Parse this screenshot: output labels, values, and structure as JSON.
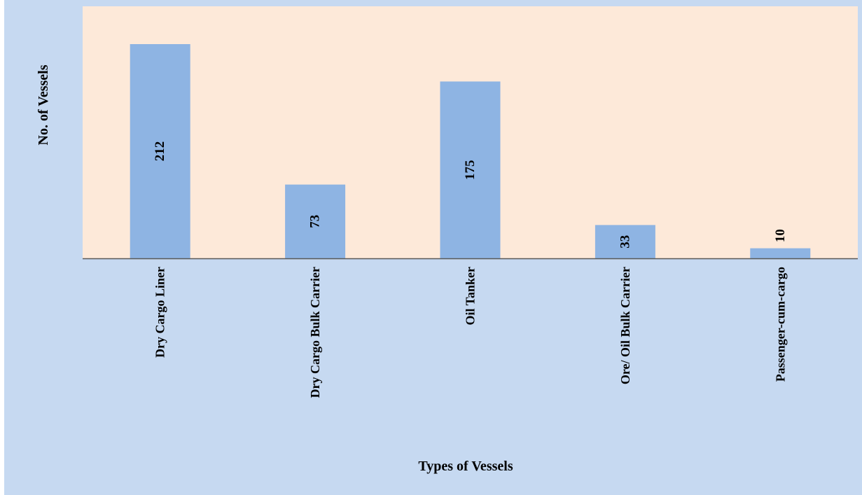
{
  "chart_data": {
    "type": "bar",
    "categories": [
      "Dry Cargo Liner",
      "Dry Cargo Bulk Carrier",
      "Oil Tanker",
      "Ore/ Oil  Bulk Carrier",
      "Passenger-cum-cargo"
    ],
    "values": [
      212,
      73,
      175,
      33,
      10
    ],
    "data_labels": [
      "212",
      "73",
      "175",
      "33",
      "10"
    ],
    "xlabel": "Types of Vessels",
    "ylabel": "No. of Vessels",
    "ylim": [
      0,
      240
    ],
    "grid": false,
    "legend": "none",
    "data_label_orientation": "vertical",
    "tick_label_orientation": "vertical"
  },
  "colors": {
    "outer_background": "#c6d9f1",
    "plot_background": "#fde9d9",
    "bar_fill": "#8eb4e3",
    "axis_line": "#595959",
    "text": "#000000"
  }
}
